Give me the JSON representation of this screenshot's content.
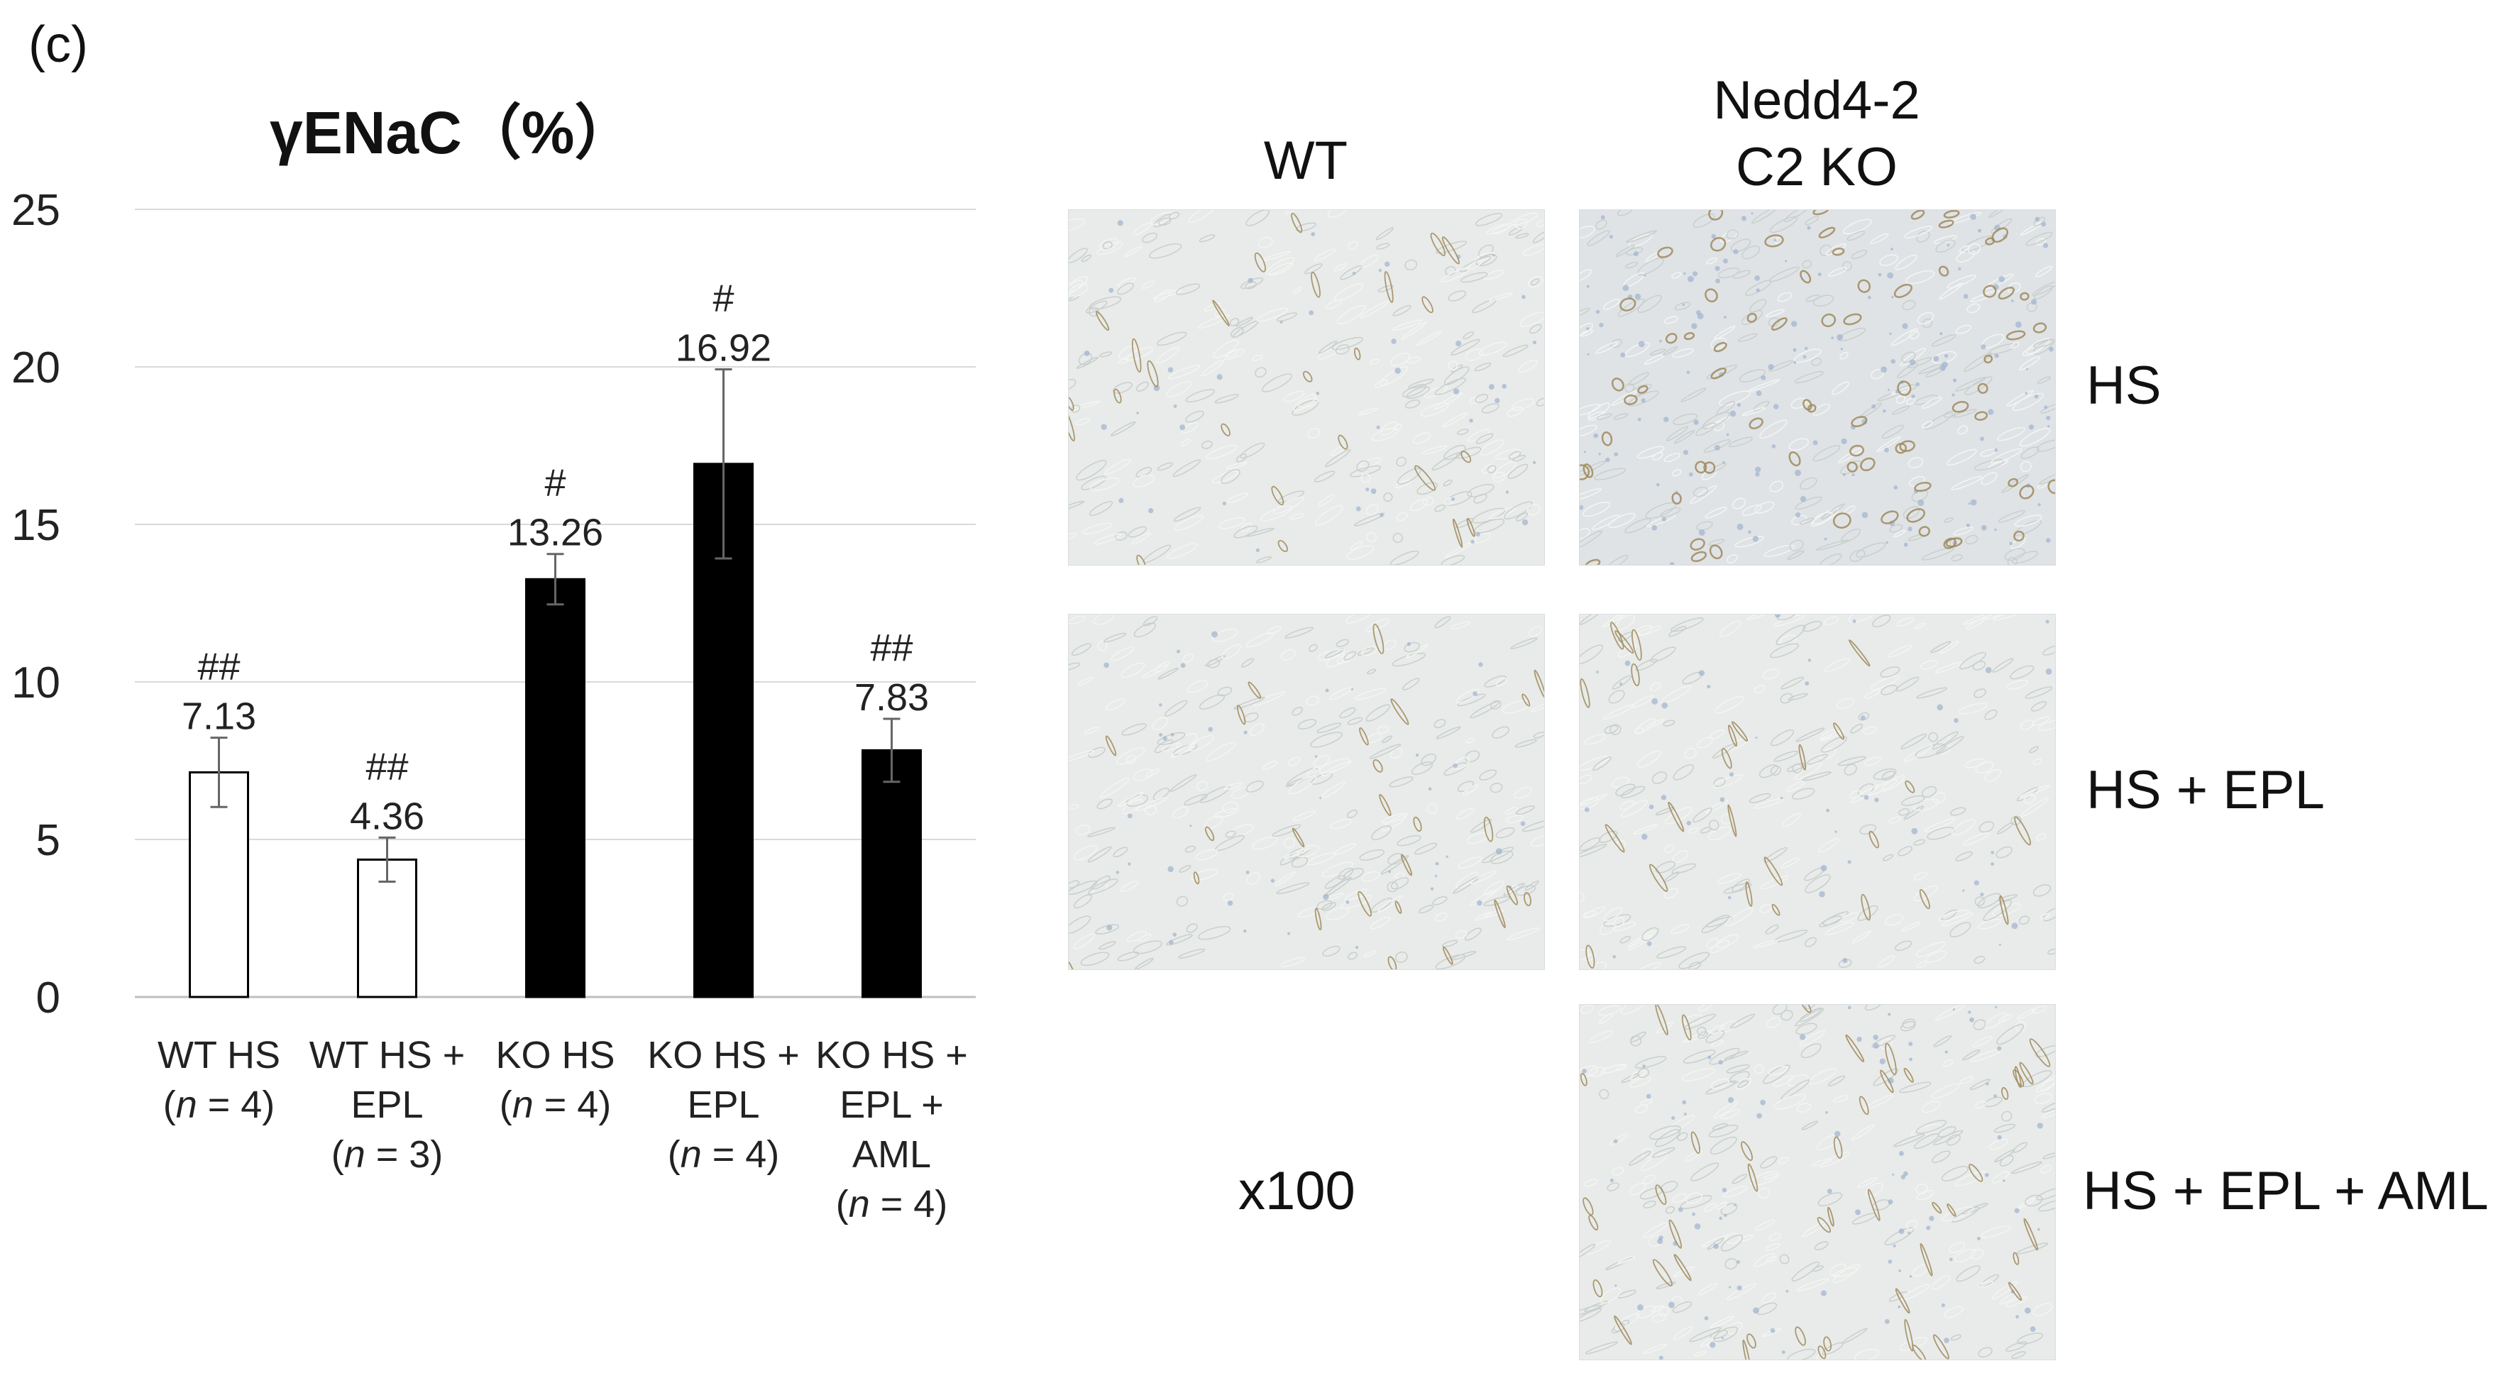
{
  "panel_label": "(c)",
  "chart_data": {
    "type": "bar",
    "title": "γENaC（%）",
    "xlabel": "",
    "ylabel": "",
    "ylim": [
      0,
      25
    ],
    "yticks": [
      0,
      5,
      10,
      15,
      20,
      25
    ],
    "grid": true,
    "categories": [
      [
        "WT HS",
        "(n = 4)"
      ],
      [
        "WT HS +",
        "EPL",
        "(n = 3)"
      ],
      [
        "KO HS",
        "(n = 4)"
      ],
      [
        "KO HS +",
        "EPL",
        "(n = 4)"
      ],
      [
        "KO HS +",
        "EPL +",
        "AML",
        "(n = 4)"
      ]
    ],
    "values": [
      7.13,
      4.36,
      13.26,
      16.92,
      7.83
    ],
    "value_labels": [
      "7.13",
      "4.36",
      "13.26",
      "16.92",
      "7.83"
    ],
    "errors": [
      1.1,
      0.7,
      0.8,
      3.0,
      1.0
    ],
    "significance": [
      "##",
      "##",
      "#",
      "#",
      "##"
    ],
    "bar_fill": [
      "white",
      "white",
      "black",
      "black",
      "black"
    ]
  },
  "micrographs": {
    "columns": [
      [
        "WT"
      ],
      [
        "Nedd4-2",
        "C2 KO"
      ]
    ],
    "rows": [
      "HS",
      "HS + EPL",
      "HS + EPL + AML"
    ],
    "magnification": "x100"
  },
  "colors": {
    "bar_black": "#000000",
    "bar_white": "#ffffff",
    "grid": "#d9d9d9",
    "tissue_base": "#e8ebe9",
    "stain_brown": "#a08a5c",
    "stain_blue": "#9fb2cf"
  }
}
